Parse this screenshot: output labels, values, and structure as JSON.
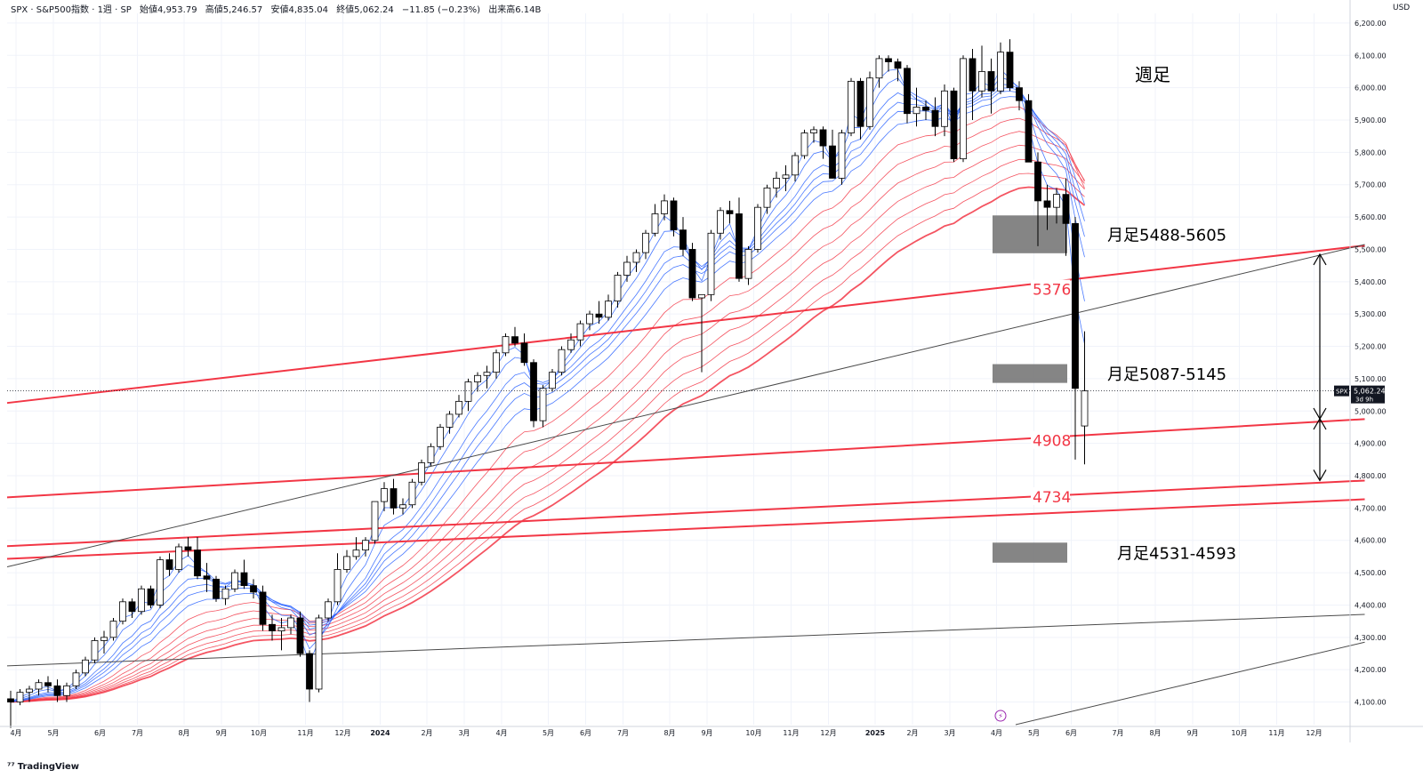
{
  "header": {
    "symbol": "SPX · S&P500指数 · 1週 · SP",
    "open": "始値4,953.79",
    "high": "高値5,246.57",
    "low": "安値4,835.04",
    "close": "終値5,062.24",
    "change": "−11.85 (−0.23%)",
    "high_since": "出来高6.14B"
  },
  "currency_label": "USD",
  "branding": "TradingView",
  "chart_data": {
    "type": "candlestick",
    "timeframe_label": "週足",
    "y_axis": {
      "min": 4030,
      "max": 6230,
      "ticks": [
        "6,200.00",
        "6,100.00",
        "6,000.00",
        "5,900.00",
        "5,800.00",
        "5,700.00",
        "5,600.00",
        "5,500.00",
        "5,400.00",
        "5,300.00",
        "5,200.00",
        "5,100.00",
        "5,000.00",
        "4,900.00",
        "4,800.00",
        "4,700.00",
        "4,600.00",
        "4,500.00",
        "4,400.00",
        "4,300.00",
        "4,200.00",
        "4,100.00"
      ],
      "tick_values": [
        6200,
        6100,
        6000,
        5900,
        5800,
        5700,
        5600,
        5500,
        5400,
        5300,
        5200,
        5100,
        5000,
        4900,
        4800,
        4700,
        4600,
        4500,
        4400,
        4300,
        4200,
        4100
      ]
    },
    "x_axis": {
      "ticks": [
        "4月",
        "5月",
        "6月",
        "7月",
        "8月",
        "9月",
        "10月",
        "11月",
        "12月",
        "2024",
        "2月",
        "3月",
        "4月",
        "5月",
        "6月",
        "7月",
        "8月",
        "9月",
        "10月",
        "11月",
        "12月",
        "2025",
        "2月",
        "3月",
        "4月",
        "5月",
        "6月",
        "7月",
        "8月",
        "9月",
        "10月",
        "11月",
        "12月"
      ],
      "tick_weeks": [
        0,
        4,
        9,
        13,
        18,
        22,
        26,
        31,
        35,
        39,
        44,
        48,
        52,
        57,
        61,
        65,
        70,
        74,
        79,
        83,
        87,
        92,
        96,
        100,
        105,
        109,
        113,
        118,
        122,
        126,
        131,
        135,
        139
      ]
    },
    "last_price": {
      "label": "SPX",
      "value": "5,062.24",
      "countdown": "3d 9h",
      "price": 5062.24
    },
    "candles": [
      [
        4110,
        4135,
        4020,
        4100
      ],
      [
        4100,
        4140,
        4090,
        4130
      ],
      [
        4130,
        4150,
        4100,
        4140
      ],
      [
        4140,
        4170,
        4120,
        4160
      ],
      [
        4160,
        4180,
        4130,
        4150
      ],
      [
        4150,
        4170,
        4100,
        4120
      ],
      [
        4120,
        4160,
        4100,
        4150
      ],
      [
        4150,
        4200,
        4140,
        4190
      ],
      [
        4190,
        4240,
        4180,
        4230
      ],
      [
        4230,
        4300,
        4220,
        4290
      ],
      [
        4290,
        4320,
        4250,
        4300
      ],
      [
        4300,
        4360,
        4290,
        4350
      ],
      [
        4350,
        4420,
        4340,
        4410
      ],
      [
        4410,
        4420,
        4360,
        4380
      ],
      [
        4380,
        4460,
        4370,
        4450
      ],
      [
        4450,
        4460,
        4390,
        4400
      ],
      [
        4400,
        4550,
        4390,
        4540
      ],
      [
        4540,
        4560,
        4490,
        4510
      ],
      [
        4510,
        4590,
        4500,
        4580
      ],
      [
        4580,
        4610,
        4550,
        4570
      ],
      [
        4570,
        4610,
        4480,
        4490
      ],
      [
        4490,
        4530,
        4440,
        4480
      ],
      [
        4480,
        4490,
        4410,
        4420
      ],
      [
        4420,
        4460,
        4400,
        4450
      ],
      [
        4450,
        4510,
        4440,
        4500
      ],
      [
        4500,
        4540,
        4450,
        4460
      ],
      [
        4460,
        4480,
        4420,
        4440
      ],
      [
        4440,
        4460,
        4320,
        4340
      ],
      [
        4340,
        4370,
        4290,
        4320
      ],
      [
        4320,
        4360,
        4260,
        4330
      ],
      [
        4330,
        4370,
        4310,
        4360
      ],
      [
        4360,
        4380,
        4240,
        4250
      ],
      [
        4250,
        4260,
        4100,
        4140
      ],
      [
        4140,
        4370,
        4130,
        4360
      ],
      [
        4360,
        4420,
        4350,
        4410
      ],
      [
        4410,
        4560,
        4400,
        4510
      ],
      [
        4510,
        4570,
        4500,
        4550
      ],
      [
        4550,
        4610,
        4540,
        4570
      ],
      [
        4570,
        4610,
        4550,
        4600
      ],
      [
        4600,
        4710,
        4590,
        4720
      ],
      [
        4720,
        4780,
        4690,
        4760
      ],
      [
        4760,
        4790,
        4680,
        4700
      ],
      [
        4700,
        4730,
        4680,
        4710
      ],
      [
        4710,
        4790,
        4700,
        4780
      ],
      [
        4780,
        4850,
        4770,
        4840
      ],
      [
        4840,
        4900,
        4830,
        4890
      ],
      [
        4890,
        4960,
        4880,
        4950
      ],
      [
        4950,
        5000,
        4930,
        4990
      ],
      [
        4990,
        5050,
        4980,
        5030
      ],
      [
        5030,
        5100,
        5000,
        5090
      ],
      [
        5090,
        5120,
        5060,
        5110
      ],
      [
        5110,
        5140,
        5070,
        5120
      ],
      [
        5120,
        5190,
        5100,
        5180
      ],
      [
        5180,
        5240,
        5170,
        5230
      ],
      [
        5230,
        5260,
        5200,
        5210
      ],
      [
        5210,
        5240,
        5140,
        5150
      ],
      [
        5150,
        5160,
        4950,
        4970
      ],
      [
        4970,
        5080,
        4950,
        5070
      ],
      [
        5070,
        5130,
        5060,
        5120
      ],
      [
        5120,
        5200,
        5110,
        5190
      ],
      [
        5190,
        5240,
        5180,
        5220
      ],
      [
        5220,
        5280,
        5200,
        5270
      ],
      [
        5270,
        5310,
        5250,
        5300
      ],
      [
        5300,
        5340,
        5270,
        5290
      ],
      [
        5290,
        5360,
        5280,
        5340
      ],
      [
        5340,
        5430,
        5320,
        5420
      ],
      [
        5420,
        5480,
        5400,
        5460
      ],
      [
        5460,
        5500,
        5430,
        5490
      ],
      [
        5490,
        5560,
        5470,
        5550
      ],
      [
        5550,
        5640,
        5540,
        5610
      ],
      [
        5610,
        5670,
        5590,
        5650
      ],
      [
        5650,
        5660,
        5540,
        5560
      ],
      [
        5560,
        5600,
        5480,
        5500
      ],
      [
        5500,
        5520,
        5340,
        5350
      ],
      [
        5350,
        5360,
        5120,
        5360
      ],
      [
        5360,
        5560,
        5340,
        5550
      ],
      [
        5550,
        5630,
        5530,
        5620
      ],
      [
        5620,
        5650,
        5580,
        5610
      ],
      [
        5610,
        5660,
        5400,
        5410
      ],
      [
        5410,
        5510,
        5390,
        5500
      ],
      [
        5500,
        5640,
        5490,
        5630
      ],
      [
        5630,
        5700,
        5610,
        5690
      ],
      [
        5690,
        5740,
        5660,
        5720
      ],
      [
        5720,
        5760,
        5680,
        5730
      ],
      [
        5730,
        5800,
        5710,
        5790
      ],
      [
        5790,
        5870,
        5780,
        5860
      ],
      [
        5860,
        5880,
        5830,
        5870
      ],
      [
        5870,
        5880,
        5780,
        5820
      ],
      [
        5820,
        5870,
        5720,
        5720
      ],
      [
        5720,
        5870,
        5700,
        5860
      ],
      [
        5860,
        6030,
        5850,
        6020
      ],
      [
        6020,
        6030,
        5840,
        5880
      ],
      [
        5880,
        6050,
        5870,
        6030
      ],
      [
        6030,
        6100,
        6000,
        6090
      ],
      [
        6090,
        6100,
        6050,
        6080
      ],
      [
        6080,
        6090,
        6020,
        6060
      ],
      [
        6060,
        6070,
        5890,
        5920
      ],
      [
        5920,
        6000,
        5880,
        5940
      ],
      [
        5940,
        5960,
        5900,
        5930
      ],
      [
        5930,
        5970,
        5850,
        5880
      ],
      [
        5880,
        6010,
        5850,
        5990
      ],
      [
        5990,
        6000,
        5770,
        5780
      ],
      [
        5780,
        6100,
        5770,
        6090
      ],
      [
        6090,
        6120,
        5900,
        5990
      ],
      [
        5990,
        6130,
        5970,
        6050
      ],
      [
        6050,
        6090,
        5920,
        5990
      ],
      [
        5990,
        6140,
        5980,
        6110
      ],
      [
        6110,
        6150,
        5990,
        6000
      ],
      [
        6000,
        6020,
        5930,
        5960
      ],
      [
        5960,
        5980,
        5770,
        5770
      ],
      [
        5770,
        5800,
        5510,
        5650
      ],
      [
        5650,
        5700,
        5560,
        5630
      ],
      [
        5630,
        5690,
        5580,
        5670
      ],
      [
        5670,
        5720,
        5480,
        5580
      ],
      [
        5580,
        5600,
        4850,
        5070
      ],
      [
        4953.79,
        5246.57,
        4835.04,
        5062.24
      ]
    ],
    "zones": [
      {
        "label": "月足5488-5605",
        "low": 5488,
        "high": 5605
      },
      {
        "label": "月足5087-5145",
        "low": 5087,
        "high": 5145
      },
      {
        "label": "月足4531-4593",
        "low": 4531,
        "high": 4593
      }
    ],
    "lines": [
      {
        "label": "5376",
        "color": "#f23645",
        "points": [
          [
            0,
            5025
          ],
          [
            145,
            5512
          ]
        ]
      },
      {
        "label": "4908",
        "color": "#f23645",
        "points": [
          [
            0,
            4733
          ],
          [
            145,
            4975
          ]
        ]
      },
      {
        "label": "4734",
        "color": "#f23645",
        "points": [
          [
            0,
            4582
          ],
          [
            145,
            4785
          ]
        ]
      },
      {
        "label": "",
        "color": "#f23645",
        "points": [
          [
            0,
            4543
          ],
          [
            145,
            4727
          ]
        ]
      },
      {
        "label": "",
        "color": "#4a4a4a",
        "points": [
          [
            0,
            4518
          ],
          [
            145,
            5515
          ]
        ]
      },
      {
        "label": "",
        "color": "#4a4a4a",
        "points": [
          [
            0,
            4212
          ],
          [
            145,
            4371
          ]
        ]
      },
      {
        "label": "",
        "color": "#4a4a4a",
        "points": [
          [
            108,
            4030
          ],
          [
            145,
            4285
          ]
        ]
      }
    ],
    "measure_arrows": [
      {
        "from": 4976,
        "to": 5485
      },
      {
        "from": 4785,
        "to": 4976
      }
    ],
    "colors": {
      "up": "#ffffff",
      "down": "#000000",
      "short_ema": "#2962ff",
      "long_ema": "#f23645",
      "zone": "#787878"
    }
  }
}
